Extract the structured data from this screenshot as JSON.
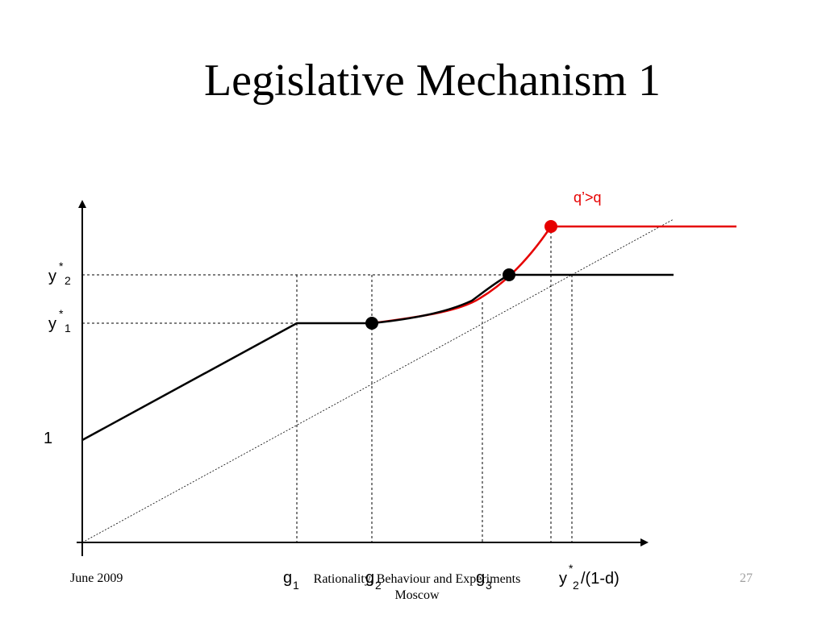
{
  "slide": {
    "title": "Legislative Mechanism 1",
    "labels": {
      "y2": "y",
      "y2_sup": "*",
      "y2_sub": "2",
      "y1": "y",
      "y1_sup": "*",
      "y1_sub": "1",
      "one": "1",
      "g": "g",
      "g1_sub": "1",
      "g2_sub": "2",
      "g3_sub": "3",
      "xend_y": "y",
      "xend_sup": "*",
      "xend_sub": "2",
      "xend_rest": "/(1-d)",
      "red_curve": "q’>q"
    },
    "colors": {
      "black_curve": "#000000",
      "red_curve": "#e60000"
    }
  },
  "footer": {
    "date": "June 2009",
    "center_line1": "Rationality, Behaviour and Experiments",
    "center_line2": "Moscow",
    "page": "27"
  }
}
